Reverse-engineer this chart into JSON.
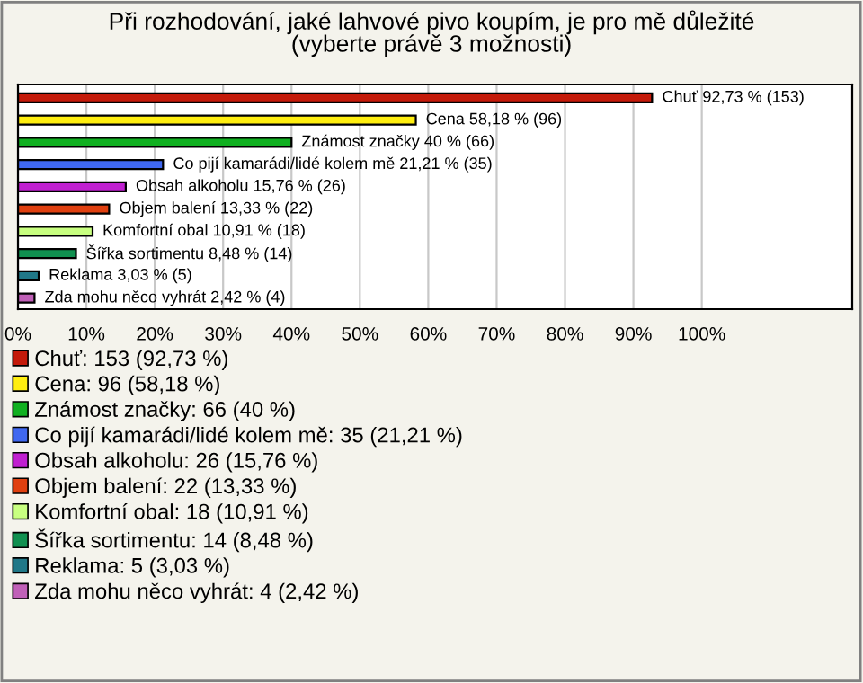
{
  "chart_data": {
    "type": "bar",
    "orientation": "horizontal",
    "title": "Při rozhodování, jaké lahvové pivo koupím, je pro mě důležité\n(vyberte právě 3 možnosti)",
    "categories": [
      null,
      null,
      null,
      null,
      null,
      null,
      null,
      null,
      null,
      null
    ],
    "series": [
      {
        "name": "Chuť: 153 (92,73 %)",
        "color": "#c41a0a",
        "values": [
          92.73,
          null,
          null,
          null,
          null,
          null,
          null,
          null,
          null,
          null
        ],
        "value_labels": [
          "Chuť 92,73 % (153)",
          null,
          null,
          null,
          null,
          null,
          null,
          null,
          null,
          null
        ]
      },
      {
        "name": "Cena: 96 (58,18 %)",
        "color": "#ffee10",
        "values": [
          null,
          58.18,
          null,
          null,
          null,
          null,
          null,
          null,
          null,
          null
        ],
        "value_labels": [
          null,
          "Cena 58,18 % (96)",
          null,
          null,
          null,
          null,
          null,
          null,
          null,
          null
        ]
      },
      {
        "name": "Známost značky: 66 (40 %)",
        "color": "#10b020",
        "values": [
          null,
          null,
          40,
          null,
          null,
          null,
          null,
          null,
          null,
          null
        ],
        "value_labels": [
          null,
          null,
          "Známost značky 40 % (66)",
          null,
          null,
          null,
          null,
          null,
          null,
          null
        ]
      },
      {
        "name": "Co pijí kamarádi/lidé kolem mě: 35 (21,21 %)",
        "color": "#4068f0",
        "values": [
          null,
          null,
          null,
          21.21,
          null,
          null,
          null,
          null,
          null,
          null
        ],
        "value_labels": [
          null,
          null,
          null,
          "Co pijí kamarádi/lidé kolem mě 21,21 % (35)",
          null,
          null,
          null,
          null,
          null,
          null
        ]
      },
      {
        "name": "Obsah alkoholu: 26 (15,76 %)",
        "color": "#c020d0",
        "values": [
          null,
          null,
          null,
          null,
          15.76,
          null,
          null,
          null,
          null,
          null
        ],
        "value_labels": [
          null,
          null,
          null,
          null,
          "Obsah alkoholu 15,76 % (26)",
          null,
          null,
          null,
          null,
          null
        ]
      },
      {
        "name": "Objem balení: 22 (13,33 %)",
        "color": "#e04010",
        "values": [
          null,
          null,
          null,
          null,
          null,
          13.33,
          null,
          null,
          null,
          null
        ],
        "value_labels": [
          null,
          null,
          null,
          null,
          null,
          "Objem balení 13,33 % (22)",
          null,
          null,
          null,
          null
        ]
      },
      {
        "name": "Komfortní obal: 18 (10,91 %)",
        "color": "#c8ff80",
        "values": [
          null,
          null,
          null,
          null,
          null,
          null,
          10.91,
          null,
          null,
          null
        ],
        "value_labels": [
          null,
          null,
          null,
          null,
          null,
          null,
          "Komfortní obal 10,91 % (18)",
          null,
          null,
          null
        ]
      },
      {
        "name": "Šířka sortimentu: 14 (8,48 %)",
        "color": "#109050",
        "values": [
          null,
          null,
          null,
          null,
          null,
          null,
          null,
          8.48,
          null,
          null
        ],
        "value_labels": [
          null,
          null,
          null,
          null,
          null,
          null,
          null,
          "Šířka sortimentu 8,48 % (14)",
          null,
          null
        ]
      },
      {
        "name": "Reklama: 5 (3,03 %)",
        "color": "#207888",
        "values": [
          null,
          null,
          null,
          null,
          null,
          null,
          null,
          null,
          3.03,
          null
        ],
        "value_labels": [
          null,
          null,
          null,
          null,
          null,
          null,
          null,
          null,
          "Reklama 3,03 % (5)",
          null
        ]
      },
      {
        "name": "Zda mohu něco vyhrát: 4 (2,42 %)",
        "color": "#c060b8",
        "values": [
          null,
          null,
          null,
          null,
          null,
          null,
          null,
          null,
          null,
          2.42
        ],
        "value_labels": [
          null,
          null,
          null,
          null,
          null,
          null,
          null,
          null,
          null,
          "Zda mohu něco vyhrát 2,42 % (4)"
        ]
      }
    ],
    "xlim": [
      0,
      122
    ],
    "xticks": [
      {
        "value": 0,
        "label": "0%"
      },
      {
        "value": 10,
        "label": "10%"
      },
      {
        "value": 20,
        "label": "20%"
      },
      {
        "value": 30,
        "label": "30%"
      },
      {
        "value": 40,
        "label": "40%"
      },
      {
        "value": 50,
        "label": "50%"
      },
      {
        "value": 60,
        "label": "60%"
      },
      {
        "value": 70,
        "label": "70%"
      },
      {
        "value": 80,
        "label": "80%"
      },
      {
        "value": 90,
        "label": "90%"
      },
      {
        "value": 100,
        "label": "100%"
      }
    ],
    "grid": "x",
    "legend": "bottom",
    "tick_labels": "x"
  }
}
